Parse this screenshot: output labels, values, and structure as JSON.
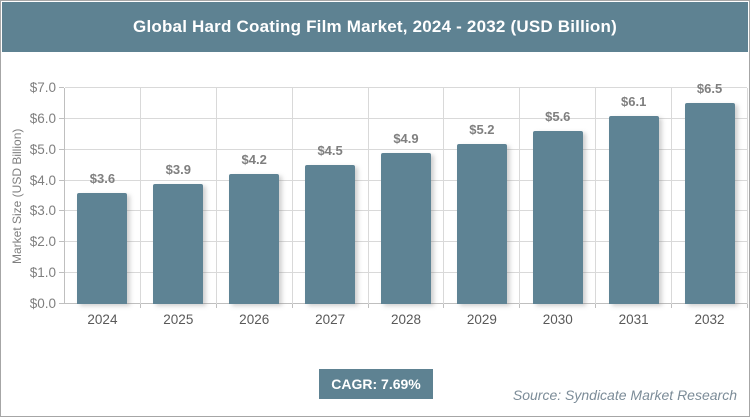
{
  "header": {
    "title": "Global Hard Coating Film Market, 2024 - 2032 (USD Billion)",
    "background": "#5e8292",
    "text_color": "#ffffff"
  },
  "chart_data": {
    "type": "bar",
    "categories": [
      "2024",
      "2025",
      "2026",
      "2027",
      "2028",
      "2029",
      "2030",
      "2031",
      "2032"
    ],
    "values": [
      3.6,
      3.9,
      4.2,
      4.5,
      4.9,
      5.2,
      5.6,
      6.1,
      6.5
    ],
    "value_labels": [
      "$3.6",
      "$3.9",
      "$4.2",
      "$4.5",
      "$4.9",
      "$5.2",
      "$5.6",
      "$6.1",
      "$6.5"
    ],
    "title": "Global Hard Coating Film Market, 2024 - 2032 (USD Billion)",
    "xlabel": "",
    "ylabel": "Market Size (USD Billion)",
    "ylim": [
      0,
      7
    ],
    "ytick_labels": [
      "$0.0",
      "$1.0",
      "$2.0",
      "$3.0",
      "$4.0",
      "$5.0",
      "$6.0",
      "$7.0"
    ],
    "grid": true,
    "legend": "none",
    "bar_color": "#5e8394",
    "gridline_color": "#d9d9d9"
  },
  "footer": {
    "cagr_label": "CAGR: 7.69%",
    "source": "Source: Syndicate Market Research"
  }
}
